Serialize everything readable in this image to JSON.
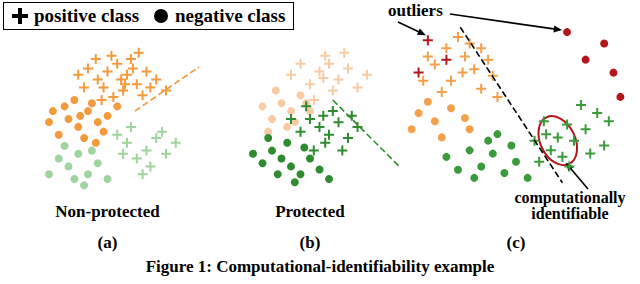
{
  "caption": "Figure 1: Computational-identifiability example",
  "key": [
    {
      "marker": "plus",
      "label": "positive class"
    },
    {
      "marker": "circle",
      "label": "negative class"
    }
  ],
  "chart_data": [
    {
      "type": "scatter",
      "title": "(a)",
      "annotations": [
        {
          "text": "Non-protected"
        }
      ],
      "xlim": [
        0,
        100
      ],
      "ylim": [
        0,
        100
      ],
      "xticks": [],
      "yticks": [],
      "tick_labels": false,
      "grid": false,
      "boundary": {
        "points": [
          [
            64,
            55
          ],
          [
            97,
            83
          ]
        ],
        "color": "#f39a3c",
        "line_style": "dashed"
      },
      "series": [
        {
          "color": "#9fd49f",
          "marker": "plus",
          "values": [
            [
              60,
              35
            ],
            [
              70,
              30
            ],
            [
              65,
              25
            ],
            [
              75,
              38
            ],
            [
              80,
              28
            ],
            [
              55,
              40
            ],
            [
              72,
              20
            ],
            [
              85,
              35
            ],
            [
              62,
              45
            ],
            [
              78,
              42
            ],
            [
              68,
              15
            ],
            [
              58,
              28
            ]
          ]
        },
        {
          "color": "#9fd49f",
          "marker": "circle",
          "values": [
            [
              30,
              20
            ],
            [
              40,
              15
            ],
            [
              35,
              28
            ],
            [
              25,
              25
            ],
            [
              45,
              22
            ],
            [
              38,
              8
            ],
            [
              20,
              15
            ],
            [
              50,
              12
            ],
            [
              28,
              33
            ],
            [
              42,
              30
            ],
            [
              33,
              12
            ]
          ]
        },
        {
          "color": "#f39a3c",
          "marker": "circle",
          "values": [
            [
              30,
              50
            ],
            [
              35,
              45
            ],
            [
              40,
              55
            ],
            [
              25,
              40
            ],
            [
              45,
              48
            ],
            [
              38,
              38
            ],
            [
              50,
              52
            ],
            [
              28,
              58
            ],
            [
              42,
              60
            ],
            [
              33,
              62
            ],
            [
              20,
              48
            ],
            [
              48,
              42
            ],
            [
              55,
              58
            ],
            [
              36,
              52
            ],
            [
              22,
              55
            ],
            [
              44,
              35
            ]
          ]
        },
        {
          "color": "#f39a3c",
          "marker": "plus",
          "values": [
            [
              50,
              80
            ],
            [
              55,
              85
            ],
            [
              60,
              78
            ],
            [
              45,
              75
            ],
            [
              65,
              72
            ],
            [
              58,
              68
            ],
            [
              70,
              80
            ],
            [
              40,
              82
            ],
            [
              52,
              90
            ],
            [
              62,
              88
            ],
            [
              48,
              70
            ],
            [
              68,
              65
            ],
            [
              75,
              75
            ],
            [
              35,
              78
            ],
            [
              57,
              75
            ],
            [
              63,
              82
            ],
            [
              44,
              88
            ],
            [
              72,
              70
            ],
            [
              53,
              64
            ],
            [
              80,
              68
            ],
            [
              47,
              62
            ],
            [
              66,
              92
            ],
            [
              38,
              70
            ],
            [
              59,
              72
            ]
          ]
        }
      ]
    },
    {
      "type": "scatter",
      "title": "(b)",
      "annotations": [
        {
          "text": "Protected"
        }
      ],
      "xlim": [
        0,
        100
      ],
      "ylim": [
        0,
        100
      ],
      "xticks": [],
      "yticks": [],
      "tick_labels": false,
      "grid": false,
      "boundary": {
        "points": [
          [
            62,
            62
          ],
          [
            97,
            20
          ]
        ],
        "color": "#2e8b2e",
        "line_style": "dashed"
      },
      "series": [
        {
          "color": "#f8cba5",
          "marker": "plus",
          "values": [
            [
              55,
              80
            ],
            [
              60,
              85
            ],
            [
              65,
              75
            ],
            [
              50,
              72
            ],
            [
              70,
              82
            ],
            [
              58,
              90
            ],
            [
              45,
              85
            ],
            [
              75,
              70
            ],
            [
              62,
              68
            ],
            [
              52,
              62
            ],
            [
              68,
              92
            ],
            [
              40,
              78
            ],
            [
              80,
              78
            ],
            [
              57,
              76
            ]
          ]
        },
        {
          "color": "#f8cba5",
          "marker": "circle",
          "values": [
            [
              35,
              60
            ],
            [
              40,
              55
            ],
            [
              30,
              50
            ],
            [
              45,
              65
            ],
            [
              25,
              58
            ],
            [
              38,
              45
            ],
            [
              50,
              55
            ],
            [
              32,
              68
            ],
            [
              42,
              48
            ],
            [
              28,
              42
            ],
            [
              48,
              60
            ]
          ]
        },
        {
          "color": "#2e8b2e",
          "marker": "circle",
          "values": [
            [
              35,
              25
            ],
            [
              40,
              20
            ],
            [
              30,
              30
            ],
            [
              45,
              15
            ],
            [
              38,
              35
            ],
            [
              25,
              22
            ],
            [
              50,
              25
            ],
            [
              42,
              10
            ],
            [
              33,
              15
            ],
            [
              55,
              18
            ],
            [
              28,
              38
            ],
            [
              47,
              32
            ],
            [
              20,
              28
            ],
            [
              60,
              12
            ]
          ]
        },
        {
          "color": "#2e8b2e",
          "marker": "plus",
          "values": [
            [
              55,
              45
            ],
            [
              60,
              40
            ],
            [
              50,
              50
            ],
            [
              65,
              48
            ],
            [
              58,
              35
            ],
            [
              45,
              42
            ],
            [
              70,
              38
            ],
            [
              62,
              55
            ],
            [
              52,
              30
            ],
            [
              75,
              45
            ],
            [
              48,
              58
            ],
            [
              67,
              30
            ],
            [
              40,
              50
            ],
            [
              57,
              52
            ],
            [
              72,
              52
            ]
          ]
        }
      ]
    },
    {
      "type": "scatter",
      "title": "(c)",
      "annotations": [
        {
          "text": "outliers"
        },
        {
          "text": "computationally identifiable"
        }
      ],
      "xlim": [
        0,
        100
      ],
      "ylim": [
        0,
        100
      ],
      "xticks": [],
      "yticks": [],
      "tick_labels": false,
      "grid": false,
      "boundary": {
        "points": [
          [
            26,
            98
          ],
          [
            70,
            2
          ]
        ],
        "color": "#000000",
        "line_style": "dashed"
      },
      "region": {
        "xlim": [
          58,
          78
        ],
        "ylim": [
          12,
          44
        ],
        "color": "#b3161b"
      },
      "series": [
        {
          "color": "#f4a04a",
          "marker": "circle",
          "values": [
            [
              8,
              45
            ],
            [
              15,
              40
            ],
            [
              22,
              48
            ],
            [
              5,
              35
            ],
            [
              18,
              30
            ],
            [
              28,
              42
            ],
            [
              12,
              52
            ],
            [
              30,
              35
            ]
          ]
        },
        {
          "color": "#f4a04a",
          "marker": "plus",
          "values": [
            [
              20,
              85
            ],
            [
              28,
              80
            ],
            [
              15,
              75
            ],
            [
              32,
              72
            ],
            [
              25,
              92
            ],
            [
              22,
              65
            ],
            [
              35,
              60
            ],
            [
              30,
              88
            ],
            [
              38,
              78
            ],
            [
              12,
              80
            ],
            [
              40,
              68
            ],
            [
              18,
              58
            ],
            [
              27,
              70
            ],
            [
              42,
              55
            ],
            [
              35,
              85
            ],
            [
              10,
              65
            ]
          ]
        },
        {
          "color": "#3b9b3b",
          "marker": "circle",
          "values": [
            [
              40,
              20
            ],
            [
              35,
              12
            ],
            [
              45,
              8
            ],
            [
              30,
              22
            ],
            [
              50,
              15
            ],
            [
              38,
              28
            ],
            [
              55,
              5
            ],
            [
              25,
              10
            ],
            [
              48,
              25
            ],
            [
              32,
              5
            ],
            [
              20,
              18
            ],
            [
              42,
              32
            ]
          ]
        },
        {
          "color": "#3b9b3b",
          "marker": "plus",
          "values": [
            [
              62,
              40
            ],
            [
              68,
              30
            ],
            [
              72,
              38
            ],
            [
              65,
              22
            ],
            [
              75,
              28
            ],
            [
              60,
              15
            ],
            [
              80,
              35
            ],
            [
              70,
              18
            ],
            [
              85,
              45
            ],
            [
              78,
              50
            ],
            [
              88,
              25
            ],
            [
              63,
              32
            ],
            [
              73,
              12
            ],
            [
              58,
              28
            ],
            [
              90,
              40
            ],
            [
              82,
              20
            ]
          ]
        },
        {
          "color": "#b3161b",
          "marker": "plus",
          "values": [
            [
              12,
              90
            ],
            [
              8,
              70
            ],
            [
              20,
              78
            ]
          ]
        },
        {
          "color": "#b3161b",
          "marker": "circle",
          "values": [
            [
              72,
              95
            ],
            [
              88,
              88
            ],
            [
              92,
              70
            ],
            [
              80,
              78
            ],
            [
              95,
              55
            ]
          ]
        }
      ]
    }
  ]
}
